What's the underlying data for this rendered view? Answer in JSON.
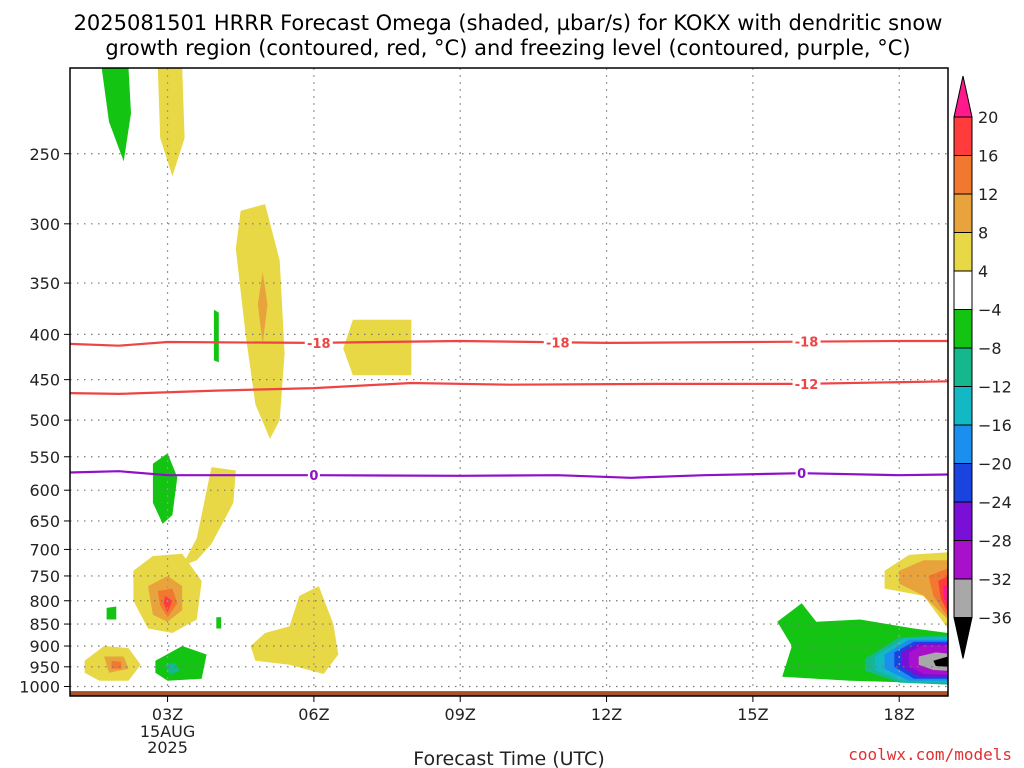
{
  "chart_data": {
    "type": "heatmap",
    "title_line1": "2025081501 HRRR Forecast Omega (shaded, µbar/s) for KOKX with dendritic snow",
    "title_line2": "growth region (contoured, red, °C) and freezing level (contoured, purple, °C)",
    "xlabel": "Forecast Time (UTC)",
    "credit": "coolwx.com/models",
    "x_ticks": [
      {
        "hour": 3,
        "label": "03Z",
        "sub1": "15AUG",
        "sub2": "2025"
      },
      {
        "hour": 6,
        "label": "06Z"
      },
      {
        "hour": 9,
        "label": "09Z"
      },
      {
        "hour": 12,
        "label": "12Z"
      },
      {
        "hour": 15,
        "label": "15Z"
      },
      {
        "hour": 18,
        "label": "18Z"
      }
    ],
    "xlim_hours": [
      1,
      19
    ],
    "y_ticks": [
      250,
      300,
      350,
      400,
      450,
      500,
      550,
      600,
      650,
      700,
      750,
      800,
      850,
      900,
      950,
      1000
    ],
    "ylim_hPa": [
      200,
      1025
    ],
    "y_scale": "log",
    "grid": true,
    "colorbar": {
      "labels": [
        "20",
        "16",
        "12",
        "8",
        "4",
        "−4",
        "−8",
        "−12",
        "−16",
        "−20",
        "−24",
        "−28",
        "−32",
        "−36"
      ],
      "colors": [
        "#ff1a8c",
        "#ff3b3b",
        "#f2782f",
        "#e8a33c",
        "#e8d845",
        "#ffffff",
        "#13c413",
        "#14b88c",
        "#12b8c4",
        "#1a8ff0",
        "#1a44e0",
        "#7a10d8",
        "#a810cc",
        "#a8a8a8",
        "#000000"
      ]
    },
    "contours": [
      {
        "name": "DGZ -18",
        "color": "#ee4444",
        "label": "-18",
        "label_hours": [
          6.1,
          11,
          16.1
        ],
        "points": [
          [
            1,
            410
          ],
          [
            2,
            412
          ],
          [
            3,
            408
          ],
          [
            6,
            409
          ],
          [
            9,
            407
          ],
          [
            12,
            409
          ],
          [
            15,
            408
          ],
          [
            18,
            407
          ],
          [
            19,
            407
          ]
        ]
      },
      {
        "name": "DGZ -12",
        "color": "#ee4444",
        "label": "-12",
        "label_hours": [
          16.1
        ],
        "points": [
          [
            1,
            466
          ],
          [
            2,
            467
          ],
          [
            4,
            463
          ],
          [
            6,
            460
          ],
          [
            8,
            454
          ],
          [
            10,
            456
          ],
          [
            13,
            455
          ],
          [
            16,
            455
          ],
          [
            19,
            452
          ]
        ]
      },
      {
        "name": "freezing level",
        "color": "#9010c8",
        "label": "0",
        "label_hours": [
          6,
          16
        ],
        "points": [
          [
            1,
            573
          ],
          [
            2,
            571
          ],
          [
            3,
            577
          ],
          [
            6,
            577
          ],
          [
            9,
            578
          ],
          [
            11,
            577
          ],
          [
            12.5,
            581
          ],
          [
            14,
            577
          ],
          [
            16,
            574
          ],
          [
            18,
            577
          ],
          [
            19,
            576
          ]
        ]
      }
    ],
    "omega_regions": [
      {
        "value": -6,
        "color": "#13c413",
        "points": [
          [
            1.65,
            200
          ],
          [
            2.2,
            200
          ],
          [
            2.25,
            225
          ],
          [
            2.1,
            255
          ],
          [
            1.8,
            230
          ]
        ]
      },
      {
        "value": 6,
        "color": "#e8d845",
        "points": [
          [
            2.8,
            200
          ],
          [
            3.3,
            200
          ],
          [
            3.35,
            240
          ],
          [
            3.1,
            265
          ],
          [
            2.85,
            240
          ]
        ]
      },
      {
        "value": 6,
        "color": "#e8d845",
        "points": [
          [
            4.5,
            290
          ],
          [
            5.0,
            285
          ],
          [
            5.3,
            330
          ],
          [
            5.4,
            420
          ],
          [
            5.3,
            500
          ],
          [
            5.1,
            525
          ],
          [
            4.8,
            480
          ],
          [
            4.6,
            400
          ],
          [
            4.4,
            320
          ]
        ]
      },
      {
        "value": 10,
        "color": "#e8a33c",
        "points": [
          [
            4.95,
            340
          ],
          [
            5.05,
            370
          ],
          [
            4.95,
            410
          ],
          [
            4.85,
            370
          ]
        ]
      },
      {
        "value": -6,
        "color": "#13c413",
        "points": [
          [
            3.95,
            375
          ],
          [
            4.05,
            378
          ],
          [
            4.05,
            430
          ],
          [
            3.95,
            428
          ]
        ]
      },
      {
        "value": 6,
        "color": "#e8d845",
        "points": [
          [
            6.8,
            385
          ],
          [
            8.0,
            385
          ],
          [
            8.0,
            445
          ],
          [
            6.8,
            445
          ],
          [
            6.6,
            415
          ]
        ]
      },
      {
        "value": -6,
        "color": "#13c413",
        "points": [
          [
            2.7,
            560
          ],
          [
            3.0,
            545
          ],
          [
            3.2,
            580
          ],
          [
            3.1,
            640
          ],
          [
            2.9,
            655
          ],
          [
            2.7,
            620
          ]
        ]
      },
      {
        "value": 6,
        "color": "#e8d845",
        "points": [
          [
            3.9,
            565
          ],
          [
            4.4,
            570
          ],
          [
            4.35,
            620
          ],
          [
            3.9,
            690
          ],
          [
            3.6,
            720
          ],
          [
            3.3,
            730
          ],
          [
            3.6,
            680
          ],
          [
            3.75,
            620
          ]
        ]
      },
      {
        "value": 6,
        "color": "#e8d845",
        "points": [
          [
            2.3,
            740
          ],
          [
            2.7,
            712
          ],
          [
            3.3,
            708
          ],
          [
            3.7,
            760
          ],
          [
            3.6,
            840
          ],
          [
            3.1,
            870
          ],
          [
            2.6,
            860
          ],
          [
            2.3,
            800
          ]
        ]
      },
      {
        "value": 10,
        "color": "#e8a33c",
        "points": [
          [
            2.6,
            770
          ],
          [
            3.0,
            750
          ],
          [
            3.3,
            770
          ],
          [
            3.3,
            820
          ],
          [
            3.0,
            845
          ],
          [
            2.7,
            830
          ]
        ]
      },
      {
        "value": 14,
        "color": "#f2782f",
        "points": [
          [
            2.8,
            780
          ],
          [
            3.1,
            775
          ],
          [
            3.2,
            805
          ],
          [
            3.0,
            835
          ],
          [
            2.85,
            810
          ]
        ]
      },
      {
        "value": 18,
        "color": "#ff3b3b",
        "points": [
          [
            2.95,
            790
          ],
          [
            3.1,
            800
          ],
          [
            3.0,
            825
          ],
          [
            2.92,
            805
          ]
        ]
      },
      {
        "value": -6,
        "color": "#13c413",
        "points": [
          [
            1.75,
            815
          ],
          [
            1.95,
            812
          ],
          [
            1.95,
            840
          ],
          [
            1.75,
            840
          ]
        ]
      },
      {
        "value": -6,
        "color": "#13c413",
        "points": [
          [
            4.0,
            835
          ],
          [
            4.1,
            835
          ],
          [
            4.1,
            860
          ],
          [
            4.0,
            860
          ]
        ]
      },
      {
        "value": 6,
        "color": "#e8d845",
        "points": [
          [
            5.7,
            790
          ],
          [
            6.1,
            770
          ],
          [
            6.4,
            850
          ],
          [
            6.5,
            920
          ],
          [
            6.2,
            968
          ],
          [
            5.5,
            945
          ],
          [
            4.8,
            935
          ],
          [
            4.7,
            900
          ],
          [
            5.0,
            870
          ],
          [
            5.5,
            855
          ]
        ]
      },
      {
        "value": 6,
        "color": "#e8d845",
        "points": [
          [
            1.3,
            935
          ],
          [
            1.7,
            900
          ],
          [
            2.2,
            905
          ],
          [
            2.45,
            945
          ],
          [
            2.2,
            985
          ],
          [
            1.6,
            985
          ],
          [
            1.3,
            965
          ]
        ]
      },
      {
        "value": 10,
        "color": "#e8a33c",
        "points": [
          [
            1.7,
            925
          ],
          [
            2.1,
            925
          ],
          [
            2.2,
            955
          ],
          [
            1.8,
            965
          ]
        ]
      },
      {
        "value": 14,
        "color": "#f2782f",
        "points": [
          [
            1.85,
            935
          ],
          [
            2.05,
            938
          ],
          [
            2.05,
            955
          ],
          [
            1.85,
            955
          ]
        ]
      },
      {
        "value": -6,
        "color": "#13c413",
        "points": [
          [
            2.75,
            935
          ],
          [
            3.3,
            900
          ],
          [
            3.8,
            920
          ],
          [
            3.7,
            980
          ],
          [
            3.0,
            985
          ],
          [
            2.75,
            965
          ]
        ]
      },
      {
        "value": -10,
        "color": "#14b88c",
        "points": [
          [
            2.95,
            945
          ],
          [
            3.15,
            940
          ],
          [
            3.25,
            960
          ],
          [
            3.05,
            970
          ]
        ]
      },
      {
        "value": 6,
        "color": "#e8d845",
        "points": [
          [
            17.7,
            740
          ],
          [
            18.2,
            710
          ],
          [
            19.0,
            705
          ],
          [
            19.0,
            860
          ],
          [
            18.5,
            790
          ],
          [
            17.7,
            775
          ]
        ]
      },
      {
        "value": 10,
        "color": "#e8a33c",
        "points": [
          [
            18.0,
            740
          ],
          [
            18.5,
            720
          ],
          [
            19.0,
            720
          ],
          [
            19.0,
            840
          ],
          [
            18.5,
            790
          ],
          [
            18.0,
            765
          ]
        ]
      },
      {
        "value": 14,
        "color": "#f2782f",
        "points": [
          [
            18.6,
            750
          ],
          [
            19.0,
            735
          ],
          [
            19.0,
            835
          ],
          [
            18.7,
            790
          ]
        ]
      },
      {
        "value": 18,
        "color": "#ff3b3b",
        "points": [
          [
            18.8,
            760
          ],
          [
            19.0,
            750
          ],
          [
            19.0,
            825
          ],
          [
            18.85,
            795
          ]
        ]
      },
      {
        "value": 22,
        "color": "#ff1a8c",
        "points": [
          [
            18.9,
            770
          ],
          [
            19.0,
            768
          ],
          [
            19.0,
            812
          ],
          [
            18.92,
            795
          ]
        ]
      },
      {
        "value": -6,
        "color": "#13c413",
        "points": [
          [
            15.5,
            845
          ],
          [
            16.0,
            805
          ],
          [
            16.3,
            845
          ],
          [
            17.2,
            840
          ],
          [
            18.3,
            860
          ],
          [
            19.0,
            870
          ],
          [
            19.0,
            995
          ],
          [
            18.3,
            990
          ],
          [
            17.0,
            985
          ],
          [
            15.6,
            975
          ],
          [
            15.8,
            900
          ]
        ]
      },
      {
        "value": -10,
        "color": "#14b88c",
        "points": [
          [
            17.3,
            930
          ],
          [
            18.0,
            880
          ],
          [
            19.0,
            875
          ],
          [
            19.0,
            995
          ],
          [
            18.0,
            990
          ],
          [
            17.3,
            960
          ]
        ]
      },
      {
        "value": -14,
        "color": "#12b8c4",
        "points": [
          [
            17.5,
            925
          ],
          [
            18.1,
            882
          ],
          [
            19.0,
            880
          ],
          [
            19.0,
            990
          ],
          [
            18.1,
            988
          ],
          [
            17.5,
            958
          ]
        ]
      },
      {
        "value": -18,
        "color": "#1a8ff0",
        "points": [
          [
            17.7,
            920
          ],
          [
            18.2,
            885
          ],
          [
            19.0,
            885
          ],
          [
            19.0,
            985
          ],
          [
            18.2,
            985
          ],
          [
            17.7,
            955
          ]
        ]
      },
      {
        "value": -22,
        "color": "#1a44e0",
        "points": [
          [
            17.9,
            915
          ],
          [
            18.3,
            890
          ],
          [
            19.0,
            890
          ],
          [
            19.0,
            980
          ],
          [
            18.3,
            980
          ],
          [
            17.9,
            950
          ]
        ]
      },
      {
        "value": -26,
        "color": "#7a10d8",
        "points": [
          [
            18.05,
            915
          ],
          [
            18.4,
            893
          ],
          [
            19.0,
            893
          ],
          [
            19.0,
            975
          ],
          [
            18.4,
            975
          ],
          [
            18.05,
            950
          ]
        ]
      },
      {
        "value": -30,
        "color": "#a810cc",
        "points": [
          [
            18.2,
            915
          ],
          [
            18.5,
            897
          ],
          [
            19.0,
            900
          ],
          [
            19.0,
            970
          ],
          [
            18.5,
            968
          ],
          [
            18.2,
            948
          ]
        ]
      },
      {
        "value": -34,
        "color": "#a8a8a8",
        "points": [
          [
            18.4,
            925
          ],
          [
            18.75,
            915
          ],
          [
            19.0,
            918
          ],
          [
            19.0,
            960
          ],
          [
            18.7,
            958
          ],
          [
            18.4,
            945
          ]
        ]
      },
      {
        "value": -38,
        "color": "#000000",
        "points": [
          [
            18.7,
            935
          ],
          [
            19.0,
            925
          ],
          [
            19.0,
            950
          ],
          [
            18.75,
            948
          ]
        ]
      }
    ],
    "terrain": {
      "color": "#a8542a",
      "top_hPa": 1012
    }
  }
}
